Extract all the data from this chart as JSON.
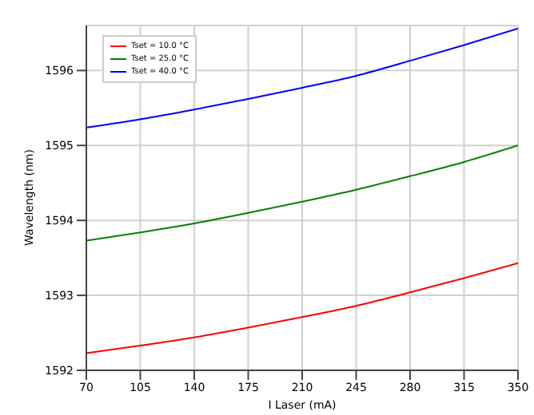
{
  "chart_data": {
    "type": "line",
    "xlabel": "I Laser (mA)",
    "ylabel": "Wavelength (nm)",
    "x": [
      70,
      105,
      140,
      175,
      210,
      245,
      280,
      315,
      350
    ],
    "series": [
      {
        "name": "Tset = 10.0 °C",
        "color": "#ff0000",
        "values": [
          1592.23,
          1592.33,
          1592.44,
          1592.57,
          1592.71,
          1592.86,
          1593.04,
          1593.23,
          1593.43
        ]
      },
      {
        "name": "Tset = 25.0 °C",
        "color": "#008000",
        "values": [
          1593.73,
          1593.84,
          1593.96,
          1594.1,
          1594.25,
          1594.41,
          1594.59,
          1594.78,
          1595.0
        ]
      },
      {
        "name": "Tset = 40.0 °C",
        "color": "#0000ff",
        "values": [
          1595.24,
          1595.35,
          1595.48,
          1595.62,
          1595.77,
          1595.93,
          1596.13,
          1596.34,
          1596.56
        ]
      }
    ],
    "xlim": [
      70,
      350
    ],
    "xticks": [
      70,
      105,
      140,
      175,
      210,
      245,
      280,
      315,
      350
    ],
    "ylim": [
      1592,
      1596.6
    ],
    "yticks": [
      1592,
      1593,
      1594,
      1595,
      1596
    ],
    "grid": true,
    "legend": "top left",
    "marker": "none",
    "line_style": "solid"
  }
}
